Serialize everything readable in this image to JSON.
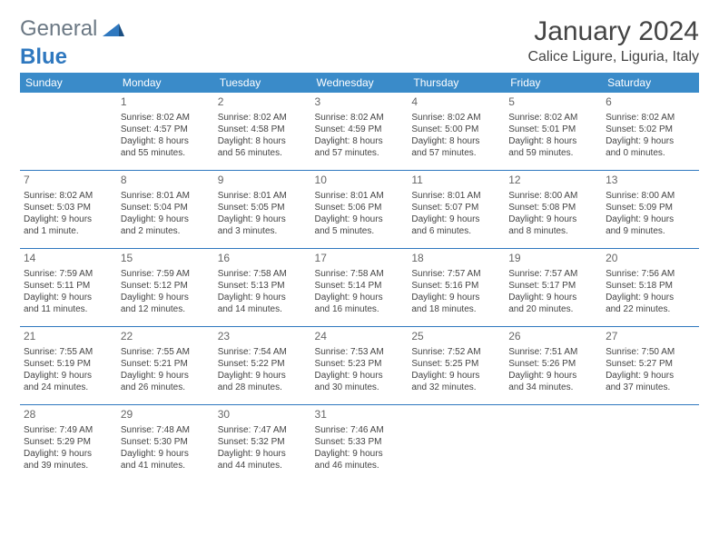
{
  "logo": {
    "part1": "General",
    "part2": "Blue"
  },
  "title": "January 2024",
  "location": "Calice Ligure, Liguria, Italy",
  "headers": [
    "Sunday",
    "Monday",
    "Tuesday",
    "Wednesday",
    "Thursday",
    "Friday",
    "Saturday"
  ],
  "colors": {
    "header_bg": "#3a8bc9",
    "border": "#2f78bf"
  },
  "weeks": [
    [
      null,
      {
        "n": "1",
        "sr": "Sunrise: 8:02 AM",
        "ss": "Sunset: 4:57 PM",
        "d1": "Daylight: 8 hours",
        "d2": "and 55 minutes."
      },
      {
        "n": "2",
        "sr": "Sunrise: 8:02 AM",
        "ss": "Sunset: 4:58 PM",
        "d1": "Daylight: 8 hours",
        "d2": "and 56 minutes."
      },
      {
        "n": "3",
        "sr": "Sunrise: 8:02 AM",
        "ss": "Sunset: 4:59 PM",
        "d1": "Daylight: 8 hours",
        "d2": "and 57 minutes."
      },
      {
        "n": "4",
        "sr": "Sunrise: 8:02 AM",
        "ss": "Sunset: 5:00 PM",
        "d1": "Daylight: 8 hours",
        "d2": "and 57 minutes."
      },
      {
        "n": "5",
        "sr": "Sunrise: 8:02 AM",
        "ss": "Sunset: 5:01 PM",
        "d1": "Daylight: 8 hours",
        "d2": "and 59 minutes."
      },
      {
        "n": "6",
        "sr": "Sunrise: 8:02 AM",
        "ss": "Sunset: 5:02 PM",
        "d1": "Daylight: 9 hours",
        "d2": "and 0 minutes."
      }
    ],
    [
      {
        "n": "7",
        "sr": "Sunrise: 8:02 AM",
        "ss": "Sunset: 5:03 PM",
        "d1": "Daylight: 9 hours",
        "d2": "and 1 minute."
      },
      {
        "n": "8",
        "sr": "Sunrise: 8:01 AM",
        "ss": "Sunset: 5:04 PM",
        "d1": "Daylight: 9 hours",
        "d2": "and 2 minutes."
      },
      {
        "n": "9",
        "sr": "Sunrise: 8:01 AM",
        "ss": "Sunset: 5:05 PM",
        "d1": "Daylight: 9 hours",
        "d2": "and 3 minutes."
      },
      {
        "n": "10",
        "sr": "Sunrise: 8:01 AM",
        "ss": "Sunset: 5:06 PM",
        "d1": "Daylight: 9 hours",
        "d2": "and 5 minutes."
      },
      {
        "n": "11",
        "sr": "Sunrise: 8:01 AM",
        "ss": "Sunset: 5:07 PM",
        "d1": "Daylight: 9 hours",
        "d2": "and 6 minutes."
      },
      {
        "n": "12",
        "sr": "Sunrise: 8:00 AM",
        "ss": "Sunset: 5:08 PM",
        "d1": "Daylight: 9 hours",
        "d2": "and 8 minutes."
      },
      {
        "n": "13",
        "sr": "Sunrise: 8:00 AM",
        "ss": "Sunset: 5:09 PM",
        "d1": "Daylight: 9 hours",
        "d2": "and 9 minutes."
      }
    ],
    [
      {
        "n": "14",
        "sr": "Sunrise: 7:59 AM",
        "ss": "Sunset: 5:11 PM",
        "d1": "Daylight: 9 hours",
        "d2": "and 11 minutes."
      },
      {
        "n": "15",
        "sr": "Sunrise: 7:59 AM",
        "ss": "Sunset: 5:12 PM",
        "d1": "Daylight: 9 hours",
        "d2": "and 12 minutes."
      },
      {
        "n": "16",
        "sr": "Sunrise: 7:58 AM",
        "ss": "Sunset: 5:13 PM",
        "d1": "Daylight: 9 hours",
        "d2": "and 14 minutes."
      },
      {
        "n": "17",
        "sr": "Sunrise: 7:58 AM",
        "ss": "Sunset: 5:14 PM",
        "d1": "Daylight: 9 hours",
        "d2": "and 16 minutes."
      },
      {
        "n": "18",
        "sr": "Sunrise: 7:57 AM",
        "ss": "Sunset: 5:16 PM",
        "d1": "Daylight: 9 hours",
        "d2": "and 18 minutes."
      },
      {
        "n": "19",
        "sr": "Sunrise: 7:57 AM",
        "ss": "Sunset: 5:17 PM",
        "d1": "Daylight: 9 hours",
        "d2": "and 20 minutes."
      },
      {
        "n": "20",
        "sr": "Sunrise: 7:56 AM",
        "ss": "Sunset: 5:18 PM",
        "d1": "Daylight: 9 hours",
        "d2": "and 22 minutes."
      }
    ],
    [
      {
        "n": "21",
        "sr": "Sunrise: 7:55 AM",
        "ss": "Sunset: 5:19 PM",
        "d1": "Daylight: 9 hours",
        "d2": "and 24 minutes."
      },
      {
        "n": "22",
        "sr": "Sunrise: 7:55 AM",
        "ss": "Sunset: 5:21 PM",
        "d1": "Daylight: 9 hours",
        "d2": "and 26 minutes."
      },
      {
        "n": "23",
        "sr": "Sunrise: 7:54 AM",
        "ss": "Sunset: 5:22 PM",
        "d1": "Daylight: 9 hours",
        "d2": "and 28 minutes."
      },
      {
        "n": "24",
        "sr": "Sunrise: 7:53 AM",
        "ss": "Sunset: 5:23 PM",
        "d1": "Daylight: 9 hours",
        "d2": "and 30 minutes."
      },
      {
        "n": "25",
        "sr": "Sunrise: 7:52 AM",
        "ss": "Sunset: 5:25 PM",
        "d1": "Daylight: 9 hours",
        "d2": "and 32 minutes."
      },
      {
        "n": "26",
        "sr": "Sunrise: 7:51 AM",
        "ss": "Sunset: 5:26 PM",
        "d1": "Daylight: 9 hours",
        "d2": "and 34 minutes."
      },
      {
        "n": "27",
        "sr": "Sunrise: 7:50 AM",
        "ss": "Sunset: 5:27 PM",
        "d1": "Daylight: 9 hours",
        "d2": "and 37 minutes."
      }
    ],
    [
      {
        "n": "28",
        "sr": "Sunrise: 7:49 AM",
        "ss": "Sunset: 5:29 PM",
        "d1": "Daylight: 9 hours",
        "d2": "and 39 minutes."
      },
      {
        "n": "29",
        "sr": "Sunrise: 7:48 AM",
        "ss": "Sunset: 5:30 PM",
        "d1": "Daylight: 9 hours",
        "d2": "and 41 minutes."
      },
      {
        "n": "30",
        "sr": "Sunrise: 7:47 AM",
        "ss": "Sunset: 5:32 PM",
        "d1": "Daylight: 9 hours",
        "d2": "and 44 minutes."
      },
      {
        "n": "31",
        "sr": "Sunrise: 7:46 AM",
        "ss": "Sunset: 5:33 PM",
        "d1": "Daylight: 9 hours",
        "d2": "and 46 minutes."
      },
      null,
      null,
      null
    ]
  ]
}
